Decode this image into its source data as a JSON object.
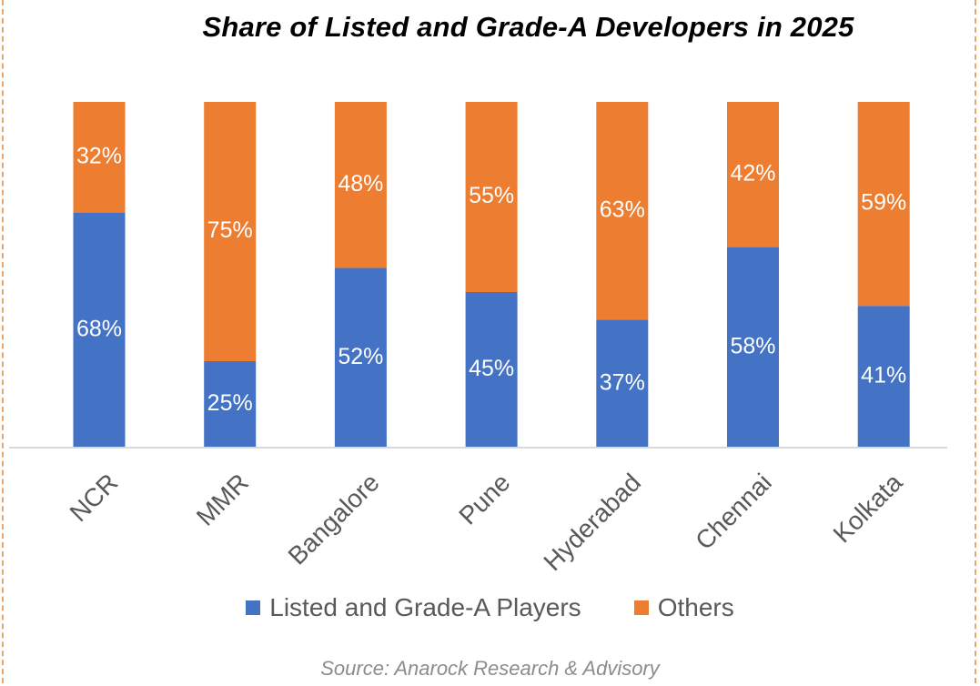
{
  "chart_data": {
    "type": "bar",
    "stacked": true,
    "title": "Share of Listed and Grade-A Developers in 2025",
    "categories": [
      "NCR",
      "MMR",
      "Bangalore",
      "Pune",
      "Hyderabad",
      "Chennai",
      "Kolkata"
    ],
    "series": [
      {
        "name": "Listed and Grade-A Players",
        "values": [
          68,
          25,
          52,
          45,
          37,
          58,
          41
        ],
        "labels": [
          "68%",
          "25%",
          "52%",
          "45%",
          "37%",
          "58%",
          "41%"
        ],
        "color": "#4472C4"
      },
      {
        "name": "Others",
        "values": [
          32,
          75,
          48,
          55,
          63,
          42,
          59
        ],
        "labels": [
          "32%",
          "75%",
          "48%",
          "55%",
          "63%",
          "42%",
          "59%"
        ],
        "color": "#ED7D31"
      }
    ],
    "ylim": [
      0,
      100
    ],
    "grid": false,
    "legend": "bottom",
    "source": "Source: Anarock Research & Advisory"
  }
}
